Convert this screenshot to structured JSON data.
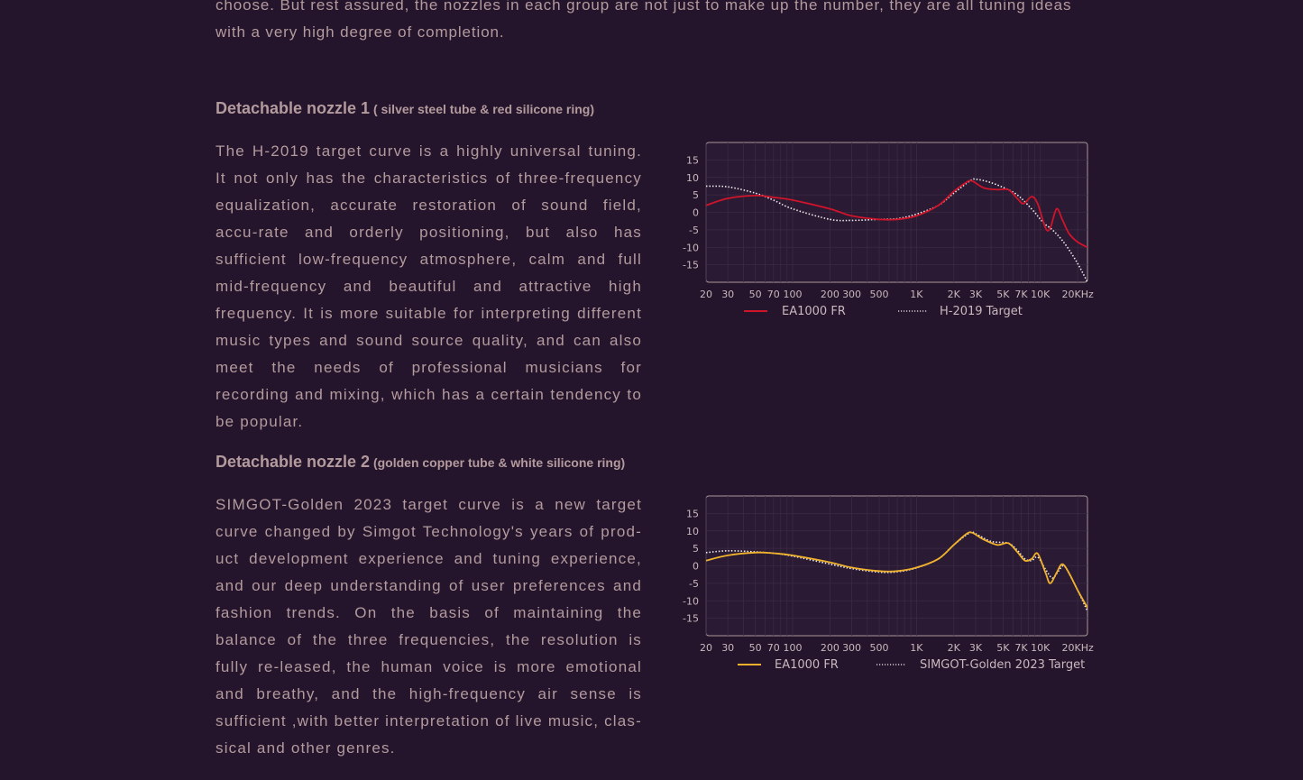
{
  "intro": "choose. But rest assured, the nozzles in each group are not just to make up the number, they are all tuning ideas with a very high degree of completion.",
  "sections": [
    {
      "heading": "Detachable nozzle 1",
      "subheading": " ( silver steel tube & red silicone ring)",
      "body": "The H-2019 target curve is a highly universal tuning. It not only has the characteristics of three-frequency equalization, accurate restoration of sound field, accu-rate and orderly positioning, but also has sufficient low-frequency atmosphere, calm and full mid-frequency and beautiful and attractive high frequency. It is more suitable for interpreting different music types and sound source quality, and can also meet the needs of professional musicians for recording and mixing, which has a certain tendency to be popular."
    },
    {
      "heading": "Detachable nozzle 2",
      "subheading": " (golden copper tube & white silicone ring)",
      "body": "SIMGOT-Golden 2023 target curve is a new target curve changed by Simgot Technology's years of prod-uct development experience and tuning experience, and our deep understanding of user preferences and fashion trends. On the basis of maintaining the balance of the three frequencies, the resolution is fully re-leased, the human voice is more emotional and breathy, and the high-frequency air sense is sufficient ,with better interpretation of live music, clas-sical and other genres."
    }
  ],
  "chart_data": [
    {
      "type": "line",
      "xscale": "log",
      "xlim": [
        20,
        24000
      ],
      "ylim": [
        -20,
        20
      ],
      "x_ticks": [
        20,
        30,
        50,
        70,
        100,
        200,
        300,
        500,
        1000,
        2000,
        3000,
        5000,
        7000,
        10000,
        20000
      ],
      "x_tick_labels": [
        "20",
        "30",
        "50",
        "70",
        "100",
        "200",
        "300",
        "500",
        "1K",
        "2K",
        "3K",
        "5K",
        "7K",
        "10K",
        "20KHz"
      ],
      "y_ticks": [
        15,
        10,
        5,
        0,
        -5,
        -10,
        -15
      ],
      "y_tick_labels": [
        "15",
        "10",
        "5",
        "0",
        "-5",
        "-10",
        "-15"
      ],
      "grid": true,
      "legend": "bottom",
      "series": [
        {
          "name": "EA1000 FR",
          "color": "#d0142a",
          "style": "solid",
          "points": [
            [
              20,
              2
            ],
            [
              30,
              4
            ],
            [
              50,
              4.8
            ],
            [
              70,
              4.3
            ],
            [
              100,
              3.5
            ],
            [
              200,
              1
            ],
            [
              300,
              -1
            ],
            [
              500,
              -2
            ],
            [
              700,
              -2
            ],
            [
              1000,
              -1
            ],
            [
              1500,
              2
            ],
            [
              2000,
              6
            ],
            [
              2500,
              8.5
            ],
            [
              2800,
              9
            ],
            [
              3500,
              7
            ],
            [
              4500,
              6.5
            ],
            [
              5500,
              6.5
            ],
            [
              6500,
              4
            ],
            [
              7300,
              2.5
            ],
            [
              8500,
              4.5
            ],
            [
              9500,
              2.5
            ],
            [
              11000,
              -4.5
            ],
            [
              12000,
              -4.5
            ],
            [
              13500,
              1
            ],
            [
              15000,
              -2
            ],
            [
              17000,
              -6
            ],
            [
              20000,
              -8.5
            ],
            [
              24000,
              -10
            ]
          ]
        },
        {
          "name": "H-2019 Target",
          "color": "#f0ecee",
          "style": "dotted",
          "points": [
            [
              20,
              7.5
            ],
            [
              30,
              7.3
            ],
            [
              50,
              5.5
            ],
            [
              70,
              3.5
            ],
            [
              100,
              1
            ],
            [
              200,
              -2
            ],
            [
              300,
              -2.3
            ],
            [
              500,
              -2
            ],
            [
              700,
              -1.8
            ],
            [
              1000,
              -0.5
            ],
            [
              1500,
              2
            ],
            [
              2000,
              5.5
            ],
            [
              2700,
              9
            ],
            [
              3000,
              9.5
            ],
            [
              4000,
              8.5
            ],
            [
              5500,
              6.5
            ],
            [
              6500,
              5
            ],
            [
              7500,
              3
            ],
            [
              9000,
              0
            ],
            [
              10000,
              -2
            ],
            [
              11000,
              -3.5
            ],
            [
              12500,
              -5
            ],
            [
              15000,
              -8
            ],
            [
              18000,
              -12
            ],
            [
              21000,
              -16
            ],
            [
              24000,
              -20
            ]
          ]
        }
      ]
    },
    {
      "type": "line",
      "xscale": "log",
      "xlim": [
        20,
        24000
      ],
      "ylim": [
        -20,
        20
      ],
      "x_ticks": [
        20,
        30,
        50,
        70,
        100,
        200,
        300,
        500,
        1000,
        2000,
        3000,
        5000,
        7000,
        10000,
        20000
      ],
      "x_tick_labels": [
        "20",
        "30",
        "50",
        "70",
        "100",
        "200",
        "300",
        "500",
        "1K",
        "2K",
        "3K",
        "5K",
        "7K",
        "10K",
        "20KHz"
      ],
      "y_ticks": [
        15,
        10,
        5,
        0,
        -5,
        -10,
        -15
      ],
      "y_tick_labels": [
        "15",
        "10",
        "5",
        "0",
        "-5",
        "-10",
        "-15"
      ],
      "grid": true,
      "legend": "bottom",
      "series": [
        {
          "name": "EA1000 FR",
          "color": "#f0b22c",
          "style": "solid",
          "points": [
            [
              20,
              1.5
            ],
            [
              30,
              3
            ],
            [
              50,
              3.8
            ],
            [
              70,
              3.6
            ],
            [
              100,
              3
            ],
            [
              200,
              1
            ],
            [
              300,
              -0.5
            ],
            [
              500,
              -1.5
            ],
            [
              700,
              -1.5
            ],
            [
              1000,
              -0.5
            ],
            [
              1500,
              2
            ],
            [
              2000,
              6
            ],
            [
              2500,
              9
            ],
            [
              2800,
              9.5
            ],
            [
              3500,
              7.5
            ],
            [
              4500,
              6
            ],
            [
              5500,
              6.5
            ],
            [
              6500,
              4
            ],
            [
              7500,
              1.5
            ],
            [
              8500,
              2
            ],
            [
              9500,
              3.5
            ],
            [
              11000,
              -2
            ],
            [
              12000,
              -5
            ],
            [
              13500,
              -2
            ],
            [
              15000,
              0.5
            ],
            [
              17000,
              -2
            ],
            [
              20000,
              -7
            ],
            [
              24000,
              -12
            ]
          ]
        },
        {
          "name": "SIMGOT-Golden 2023 Target",
          "color": "#f0ecee",
          "style": "dotted",
          "points": [
            [
              20,
              3.8
            ],
            [
              30,
              4.3
            ],
            [
              50,
              4
            ],
            [
              70,
              3.6
            ],
            [
              100,
              2.8
            ],
            [
              200,
              0.5
            ],
            [
              300,
              -0.8
            ],
            [
              500,
              -1.8
            ],
            [
              700,
              -1.7
            ],
            [
              1000,
              -0.6
            ],
            [
              1500,
              2
            ],
            [
              2000,
              6
            ],
            [
              2700,
              9.5
            ],
            [
              3000,
              9.2
            ],
            [
              4000,
              7
            ],
            [
              5500,
              6.5
            ],
            [
              6500,
              4.5
            ],
            [
              7500,
              2
            ],
            [
              8500,
              1.5
            ],
            [
              9500,
              2.5
            ],
            [
              11000,
              -1
            ],
            [
              12500,
              -3.5
            ],
            [
              14000,
              -1.5
            ],
            [
              15500,
              0
            ],
            [
              17500,
              -3
            ],
            [
              20000,
              -7
            ],
            [
              24000,
              -13
            ]
          ]
        }
      ]
    }
  ]
}
